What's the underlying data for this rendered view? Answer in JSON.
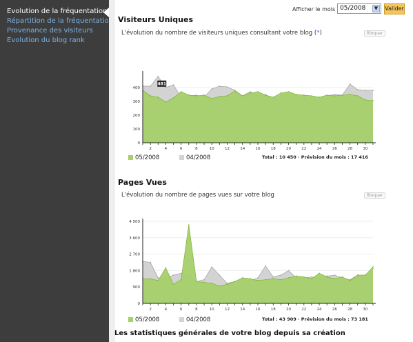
{
  "sidebar": {
    "items": [
      {
        "label": "Evolution de la fréquentation",
        "active": true
      },
      {
        "label": "Répartition de la fréquentation",
        "active": false
      },
      {
        "label": "Provenance des visiteurs",
        "active": false
      },
      {
        "label": "Evolution du blog rank",
        "active": false
      }
    ]
  },
  "toolbar": {
    "month_label": "Afficher le mois :",
    "month_value": "05/2008",
    "validate_label": "Valider"
  },
  "visitors": {
    "title": "Visiteurs Uniques",
    "description_before": "L'évolution du nombre de visiteurs uniques consultant votre blog (",
    "description_link": "*",
    "description_after": ")",
    "block_label": "Bloquer",
    "tooltip": "481",
    "total": "Total : 10 450 · Prévision du mois : 17 416"
  },
  "pageviews": {
    "title": "Pages Vues",
    "description": "L'évolution du nombre de pages vues sur votre blog",
    "block_label": "Bloquer",
    "total": "Total : 43 909 · Prévision du mois : 73 181"
  },
  "legend": {
    "current": "05/2008",
    "previous": "04/2008"
  },
  "stats_heading": "Les statistiques générales de votre blog depuis sa création",
  "colors": {
    "current_fill": "#a5d06b",
    "current_line": "#86b63e",
    "previous_fill": "#d3d3d3",
    "previous_line": "#a8a8a8",
    "sidebar_bg": "#3d3d3d",
    "link": "#7db2e6",
    "button": "#f3c55a"
  },
  "chart_data": [
    {
      "type": "area",
      "title": "Visiteurs Uniques",
      "x": [
        1,
        2,
        3,
        4,
        5,
        6,
        7,
        8,
        9,
        10,
        11,
        12,
        13,
        14,
        15,
        16,
        17,
        18,
        19,
        20,
        21,
        22,
        23,
        24,
        25,
        26,
        27,
        28,
        29,
        30,
        31
      ],
      "xticks": [
        2,
        4,
        6,
        8,
        10,
        12,
        14,
        16,
        18,
        20,
        22,
        24,
        26,
        28,
        30
      ],
      "yticks": [
        0,
        100,
        200,
        300,
        400
      ],
      "ylim": [
        0,
        500
      ],
      "series": [
        {
          "name": "05/2008",
          "values": [
            380,
            340,
            330,
            295,
            325,
            370,
            345,
            340,
            345,
            320,
            335,
            340,
            375,
            340,
            360,
            370,
            345,
            330,
            360,
            370,
            350,
            345,
            340,
            330,
            345,
            340,
            345,
            350,
            340,
            310,
            305
          ]
        },
        {
          "name": "04/2008",
          "values": [
            410,
            410,
            481,
            400,
            420,
            330,
            340,
            345,
            330,
            390,
            410,
            405,
            380,
            340,
            370,
            340,
            350,
            315,
            340,
            350,
            345,
            330,
            320,
            325,
            340,
            350,
            345,
            425,
            385,
            380,
            380
          ]
        }
      ]
    },
    {
      "type": "area",
      "title": "Pages Vues",
      "x": [
        1,
        2,
        3,
        4,
        5,
        6,
        7,
        8,
        9,
        10,
        11,
        12,
        13,
        14,
        15,
        16,
        17,
        18,
        19,
        20,
        21,
        22,
        23,
        24,
        25,
        26,
        27,
        28,
        29,
        30,
        31
      ],
      "xticks": [
        2,
        4,
        6,
        8,
        10,
        12,
        14,
        16,
        18,
        20,
        22,
        24,
        26,
        28,
        30
      ],
      "yticks": [
        0,
        900,
        1800,
        2700,
        3600,
        4500
      ],
      "yticklabels": [
        "0",
        "900",
        "1 800",
        "2 700",
        "3 600",
        "4 500"
      ],
      "ylim": [
        0,
        4500
      ],
      "series": [
        {
          "name": "05/2008",
          "values": [
            1350,
            1350,
            1250,
            1950,
            1050,
            1300,
            4300,
            1200,
            1150,
            1100,
            950,
            1050,
            1200,
            1400,
            1350,
            1250,
            1300,
            1350,
            1300,
            1400,
            1500,
            1450,
            1350,
            1650,
            1450,
            1350,
            1450,
            1250,
            1550,
            1550,
            2000
          ]
        },
        {
          "name": "04/2008",
          "values": [
            2300,
            2250,
            1400,
            1350,
            1550,
            1650,
            1550,
            1200,
            1300,
            2000,
            1550,
            1100,
            1200,
            1300,
            1250,
            1400,
            2050,
            1450,
            1550,
            1800,
            1400,
            1400,
            1450,
            1350,
            1500,
            1550,
            1400,
            1300,
            1550,
            1550,
            1900
          ]
        }
      ]
    }
  ]
}
